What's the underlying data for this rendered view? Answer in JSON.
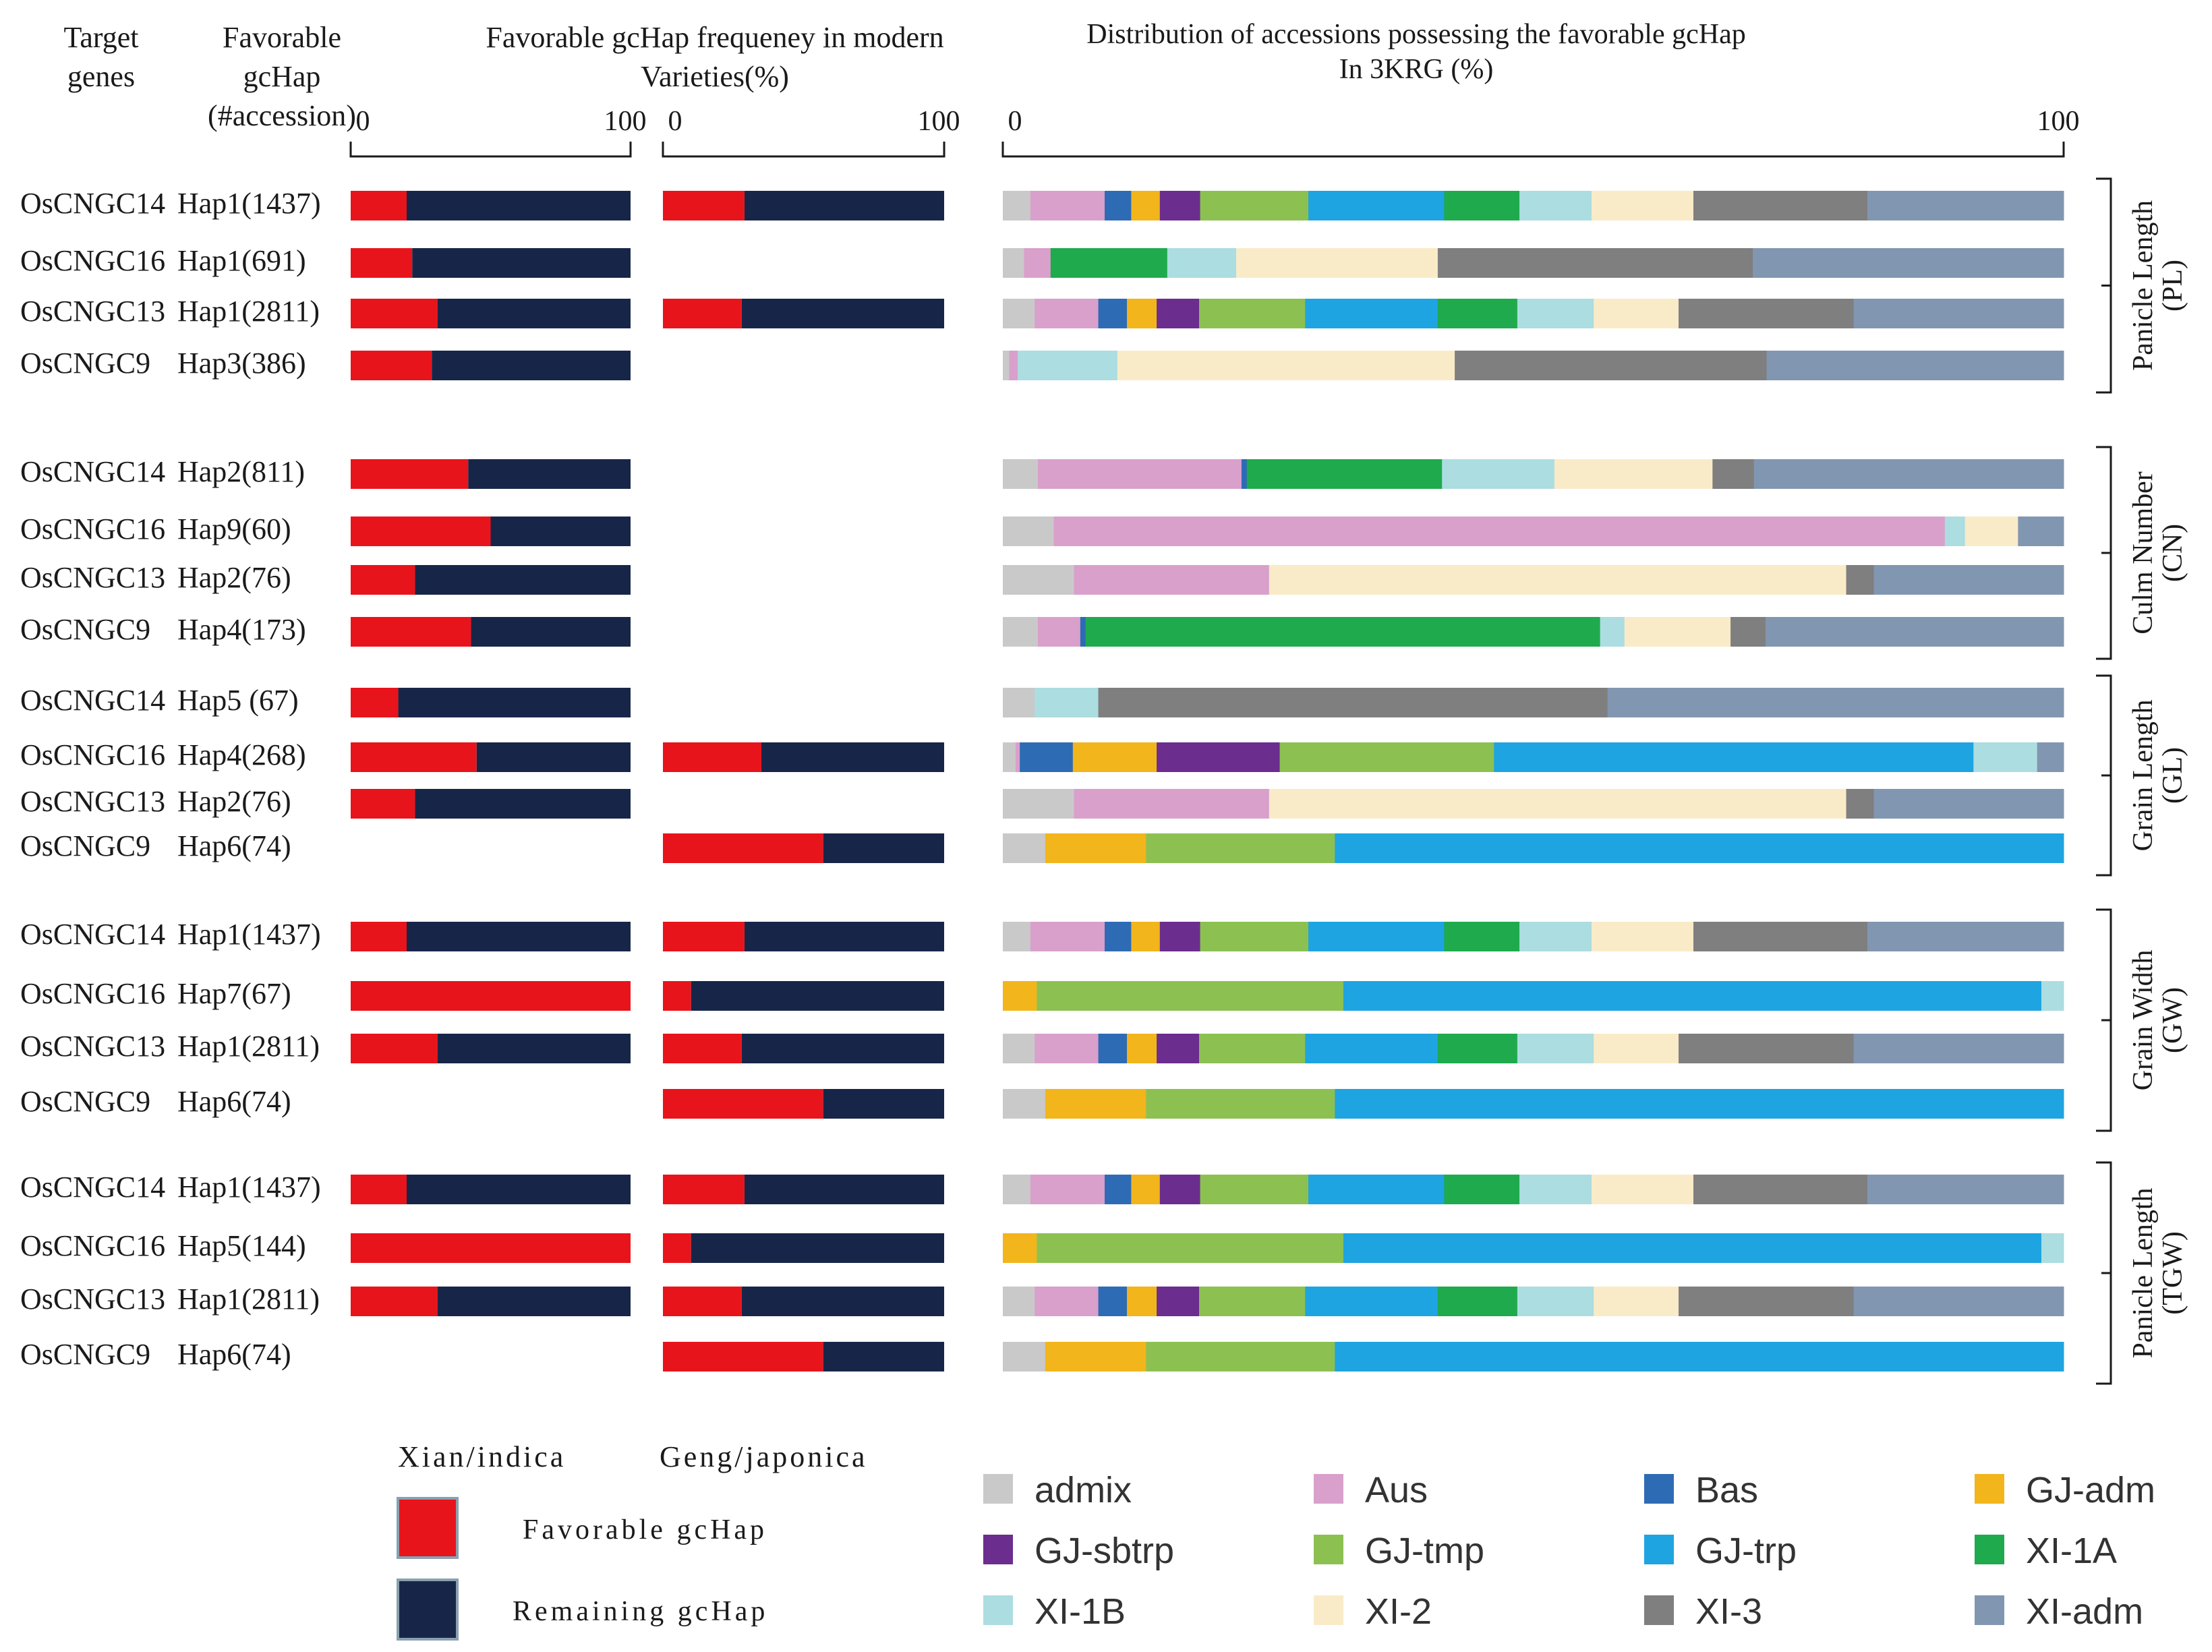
{
  "chart_data": {
    "type": "bar",
    "orientation": "horizontal",
    "stacked": true,
    "headers": {
      "genes": [
        "Target",
        "genes"
      ],
      "hap": [
        "Favorable",
        "gcHap",
        "(#accession)"
      ],
      "freq": [
        "Favorable gcHap frequeney in modern",
        "Varieties(%)"
      ],
      "dist": [
        "Distribution of accessions possessing the favorable gcHap",
        "In 3KRG (%)"
      ]
    },
    "axis_ticks": {
      "xian": [
        "0",
        "100"
      ],
      "geng": [
        "0",
        "100"
      ],
      "dist": [
        "0",
        "100"
      ]
    },
    "xlim": [
      0,
      100
    ],
    "traits": [
      {
        "label": [
          "Panicle Length",
          "(PL)"
        ],
        "rows": [
          0,
          3
        ]
      },
      {
        "label": [
          "Culm Number",
          "(CN)"
        ],
        "rows": [
          4,
          7
        ]
      },
      {
        "label": [
          "Grain Length",
          "(GL)"
        ],
        "rows": [
          8,
          11
        ]
      },
      {
        "label": [
          "Grain Width",
          "(GW)"
        ],
        "rows": [
          12,
          15
        ]
      },
      {
        "label": [
          "Panicle Length",
          "(TGW)"
        ],
        "rows": [
          16,
          19
        ]
      }
    ],
    "subpop_order": [
      "admix",
      "Aus",
      "Bas",
      "GJ-adm",
      "GJ-sbtrp",
      "GJ-tmp",
      "GJ-trp",
      "XI-1A",
      "XI-1B",
      "XI-2",
      "XI-3",
      "XI-adm"
    ],
    "rows": [
      {
        "gene": "OsCNGC14",
        "hap": "Hap1(1437)",
        "xian": 20,
        "geng": 29,
        "dist": [
          2.6,
          7,
          2.5,
          2.7,
          3.8,
          10.2,
          12.8,
          7.1,
          6.8,
          9.6,
          16.4,
          18.5
        ]
      },
      {
        "gene": "OsCNGC16",
        "hap": "Hap1(691)",
        "xian": 22,
        "geng": null,
        "dist": [
          2,
          2.5,
          0,
          0,
          0,
          0,
          0,
          11,
          6.5,
          19,
          29.7,
          29.3
        ]
      },
      {
        "gene": "OsCNGC13",
        "hap": "Hap1(2811)",
        "xian": 31,
        "geng": 28,
        "dist": [
          3,
          6,
          2.7,
          2.8,
          4,
          10,
          12.5,
          7.5,
          7.2,
          8,
          16.5,
          19.8
        ]
      },
      {
        "gene": "OsCNGC9",
        "hap": "Hap3(386)",
        "xian": 29,
        "geng": null,
        "dist": [
          0.6,
          0.8,
          0,
          0,
          0,
          0,
          0,
          0,
          9.4,
          31.8,
          29.4,
          28
        ]
      },
      {
        "gene": "OsCNGC14",
        "hap": "Hap2(811)",
        "xian": 42,
        "geng": null,
        "dist": [
          3.3,
          19.2,
          0.5,
          0,
          0,
          0,
          0,
          18.4,
          10.6,
          14.9,
          3.9,
          29.2
        ]
      },
      {
        "gene": "OsCNGC16",
        "hap": "Hap9(60)",
        "xian": 50,
        "geng": null,
        "dist": [
          4.8,
          84,
          0,
          0,
          0,
          0,
          0,
          0,
          1.9,
          5,
          0,
          4.3
        ]
      },
      {
        "gene": "OsCNGC13",
        "hap": "Hap2(76)",
        "xian": 23,
        "geng": null,
        "dist": [
          6.7,
          18.4,
          0,
          0,
          0,
          0,
          0,
          0,
          0,
          54.4,
          2.6,
          17.9
        ]
      },
      {
        "gene": "OsCNGC9",
        "hap": "Hap4(173)",
        "xian": 43,
        "geng": null,
        "dist": [
          3.3,
          4,
          0.5,
          0,
          0,
          0,
          0,
          48.5,
          2.3,
          10,
          3.3,
          28.1
        ]
      },
      {
        "gene": "OsCNGC14",
        "hap": "Hap5 (67)",
        "xian": 17,
        "geng": null,
        "dist": [
          3,
          0,
          0,
          0,
          0,
          0,
          0,
          0,
          6,
          0,
          48,
          43
        ]
      },
      {
        "gene": "OsCNGC16",
        "hap": "Hap4(268)",
        "xian": 45,
        "geng": 35,
        "dist": [
          1.2,
          0.4,
          5,
          7.9,
          11.6,
          20.2,
          45.2,
          0,
          6,
          0,
          0,
          2.5
        ]
      },
      {
        "gene": "OsCNGC13",
        "hap": "Hap2(76)",
        "xian": 23,
        "geng": null,
        "dist": [
          6.7,
          18.4,
          0,
          0,
          0,
          0,
          0,
          0,
          0,
          54.4,
          2.6,
          17.9
        ]
      },
      {
        "gene": "OsCNGC9",
        "hap": "Hap6(74)",
        "xian": null,
        "geng": 57,
        "dist": [
          4,
          0,
          0,
          9.5,
          0,
          17.8,
          68.7,
          0,
          0,
          0,
          0,
          0
        ]
      },
      {
        "gene": "OsCNGC14",
        "hap": "Hap1(1437)",
        "xian": 20,
        "geng": 29,
        "dist": [
          2.6,
          7,
          2.5,
          2.7,
          3.8,
          10.2,
          12.8,
          7.1,
          6.8,
          9.6,
          16.4,
          18.5
        ]
      },
      {
        "gene": "OsCNGC16",
        "hap": "Hap7(67)",
        "xian": 100,
        "geng": 10,
        "dist": [
          0,
          0,
          0,
          3.2,
          0,
          28.9,
          65.8,
          0,
          2.1,
          0,
          0,
          0
        ]
      },
      {
        "gene": "OsCNGC13",
        "hap": "Hap1(2811)",
        "xian": 31,
        "geng": 28,
        "dist": [
          3,
          6,
          2.7,
          2.8,
          4,
          10,
          12.5,
          7.5,
          7.2,
          8,
          16.5,
          19.8
        ]
      },
      {
        "gene": "OsCNGC9",
        "hap": "Hap6(74)",
        "xian": null,
        "geng": 57,
        "dist": [
          4,
          0,
          0,
          9.5,
          0,
          17.8,
          68.7,
          0,
          0,
          0,
          0,
          0
        ]
      },
      {
        "gene": "OsCNGC14",
        "hap": "Hap1(1437)",
        "xian": 20,
        "geng": 29,
        "dist": [
          2.6,
          7,
          2.5,
          2.7,
          3.8,
          10.2,
          12.8,
          7.1,
          6.8,
          9.6,
          16.4,
          18.5
        ]
      },
      {
        "gene": "OsCNGC16",
        "hap": "Hap5(144)",
        "xian": 100,
        "geng": 10,
        "dist": [
          0,
          0,
          0,
          3.2,
          0,
          28.9,
          65.8,
          0,
          2.1,
          0,
          0,
          0
        ]
      },
      {
        "gene": "OsCNGC13",
        "hap": "Hap1(2811)",
        "xian": 31,
        "geng": 28,
        "dist": [
          3,
          6,
          2.7,
          2.8,
          4,
          10,
          12.5,
          7.5,
          7.2,
          8,
          16.5,
          19.8
        ]
      },
      {
        "gene": "OsCNGC9",
        "hap": "Hap6(74)",
        "xian": null,
        "geng": 57,
        "dist": [
          4,
          0,
          0,
          9.5,
          0,
          17.8,
          68.7,
          0,
          0,
          0,
          0,
          0
        ]
      }
    ],
    "legend_left": {
      "xian": "Xian/indica",
      "geng": "Geng/japonica",
      "favorable": "Favorable gcHap",
      "remaining": "Remaining gcHap"
    },
    "legend_subpops": [
      {
        "name": "admix",
        "color": "#c9c9c9"
      },
      {
        "name": "Aus",
        "color": "#d9a0cc"
      },
      {
        "name": "Bas",
        "color": "#2e6bb5"
      },
      {
        "name": "GJ-adm",
        "color": "#f2b51c"
      },
      {
        "name": "GJ-sbtrp",
        "color": "#6b2d8e"
      },
      {
        "name": "GJ-tmp",
        "color": "#8cc152"
      },
      {
        "name": "GJ-trp",
        "color": "#1ea4e0"
      },
      {
        "name": "XI-1A",
        "color": "#1faa4e"
      },
      {
        "name": "XI-1B",
        "color": "#acdde0"
      },
      {
        "name": "XI-2",
        "color": "#faebc8"
      },
      {
        "name": "XI-3",
        "color": "#7f7f7f"
      },
      {
        "name": "XI-adm",
        "color": "#8196b0"
      }
    ],
    "colors": {
      "favorable": "#e8141b",
      "remaining": "#172648"
    }
  }
}
